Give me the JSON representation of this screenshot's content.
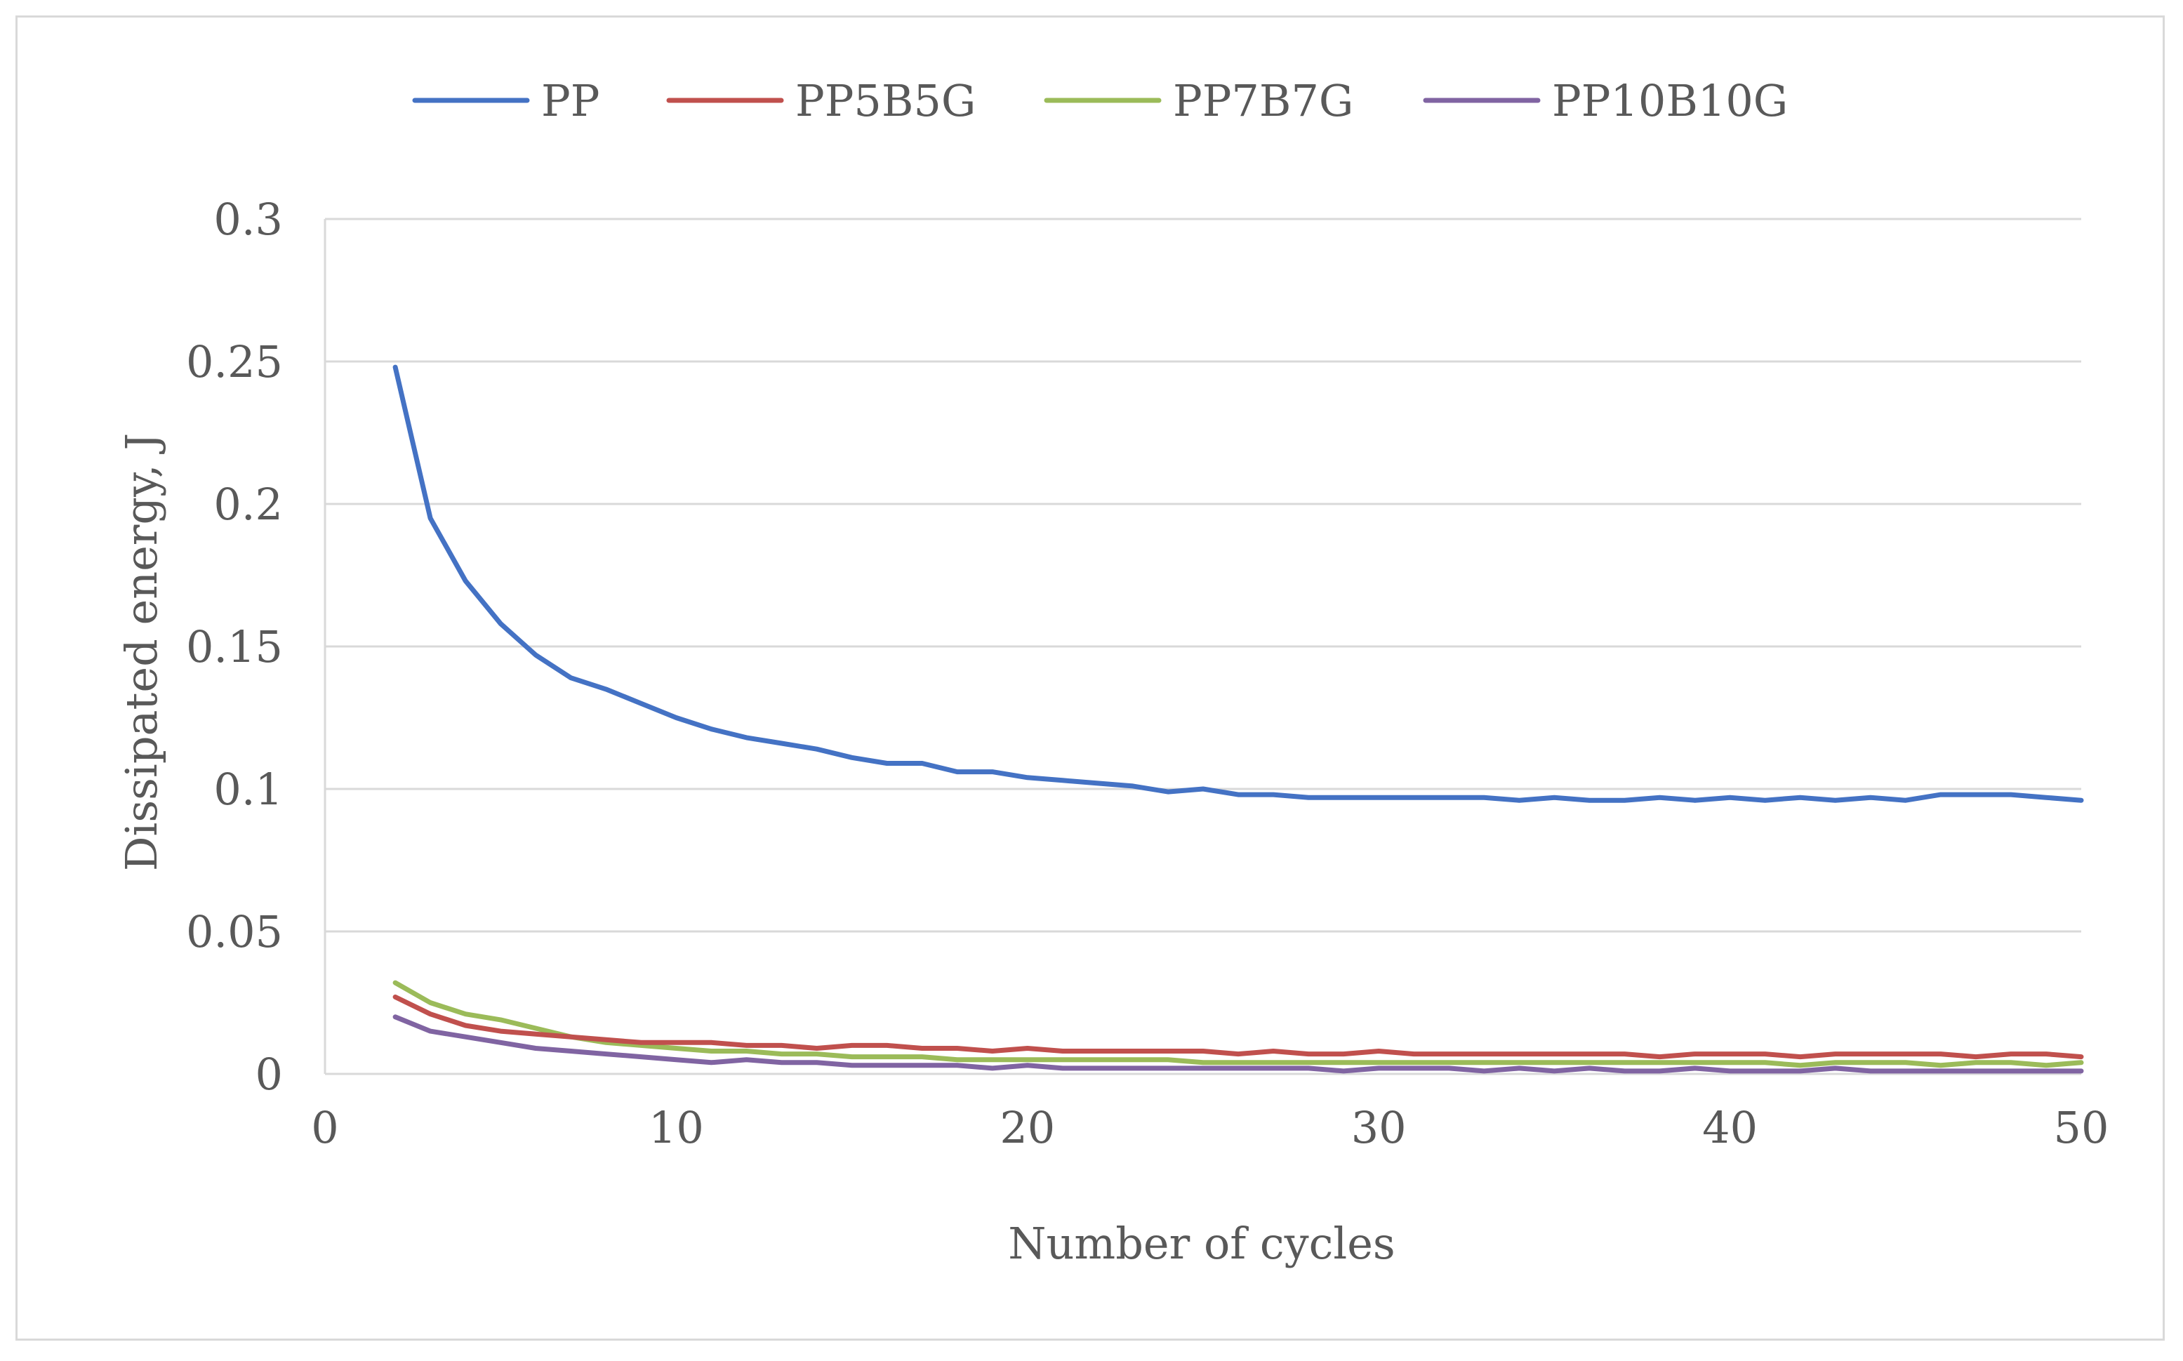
{
  "chart_data": {
    "type": "line",
    "title": "",
    "xlabel": "Number of cycles",
    "ylabel": "Dissipated energy, J",
    "xlim": [
      0,
      50
    ],
    "ylim": [
      0,
      0.3
    ],
    "x_ticks": [
      0,
      10,
      20,
      30,
      40,
      50
    ],
    "x_tick_labels": [
      "0",
      "10",
      "20",
      "30",
      "40",
      "50"
    ],
    "y_ticks": [
      0,
      0.05,
      0.1,
      0.15,
      0.2,
      0.25,
      0.3
    ],
    "y_tick_labels": [
      "0",
      "0.05",
      "0.1",
      "0.15",
      "0.2",
      "0.25",
      "0.3"
    ],
    "grid": true,
    "legend_position": "top",
    "x": [
      2,
      3,
      4,
      5,
      6,
      7,
      8,
      9,
      10,
      11,
      12,
      13,
      14,
      15,
      16,
      17,
      18,
      19,
      20,
      21,
      22,
      23,
      24,
      25,
      26,
      27,
      28,
      29,
      30,
      31,
      32,
      33,
      34,
      35,
      36,
      37,
      38,
      39,
      40,
      41,
      42,
      43,
      44,
      45,
      46,
      47,
      48,
      49,
      50
    ],
    "series": [
      {
        "name": "PP",
        "color": "#4472c4",
        "values": [
          0.248,
          0.195,
          0.173,
          0.158,
          0.147,
          0.139,
          0.135,
          0.13,
          0.125,
          0.121,
          0.118,
          0.116,
          0.114,
          0.111,
          0.109,
          0.109,
          0.106,
          0.106,
          0.104,
          0.103,
          0.102,
          0.101,
          0.099,
          0.1,
          0.098,
          0.098,
          0.097,
          0.097,
          0.097,
          0.097,
          0.097,
          0.097,
          0.096,
          0.097,
          0.096,
          0.096,
          0.097,
          0.096,
          0.097,
          0.096,
          0.097,
          0.096,
          0.097,
          0.096,
          0.098,
          0.098,
          0.098,
          0.097,
          0.096
        ]
      },
      {
        "name": "PP5B5G",
        "color": "#c0504d",
        "values": [
          0.027,
          0.021,
          0.017,
          0.015,
          0.014,
          0.013,
          0.012,
          0.011,
          0.011,
          0.011,
          0.01,
          0.01,
          0.009,
          0.01,
          0.01,
          0.009,
          0.009,
          0.008,
          0.009,
          0.008,
          0.008,
          0.008,
          0.008,
          0.008,
          0.007,
          0.008,
          0.007,
          0.007,
          0.008,
          0.007,
          0.007,
          0.007,
          0.007,
          0.007,
          0.007,
          0.007,
          0.006,
          0.007,
          0.007,
          0.007,
          0.006,
          0.007,
          0.007,
          0.007,
          0.007,
          0.006,
          0.007,
          0.007,
          0.006
        ]
      },
      {
        "name": "PP7B7G",
        "color": "#9bbb59",
        "values": [
          0.032,
          0.025,
          0.021,
          0.019,
          0.016,
          0.013,
          0.011,
          0.01,
          0.009,
          0.008,
          0.008,
          0.007,
          0.007,
          0.006,
          0.006,
          0.006,
          0.005,
          0.005,
          0.005,
          0.005,
          0.005,
          0.005,
          0.005,
          0.004,
          0.004,
          0.004,
          0.004,
          0.004,
          0.004,
          0.004,
          0.004,
          0.004,
          0.004,
          0.004,
          0.004,
          0.004,
          0.004,
          0.004,
          0.004,
          0.004,
          0.003,
          0.004,
          0.004,
          0.004,
          0.003,
          0.004,
          0.004,
          0.003,
          0.004
        ]
      },
      {
        "name": "PP10B10G",
        "color": "#8064a2",
        "values": [
          0.02,
          0.015,
          0.013,
          0.011,
          0.009,
          0.008,
          0.007,
          0.006,
          0.005,
          0.004,
          0.005,
          0.004,
          0.004,
          0.003,
          0.003,
          0.003,
          0.003,
          0.002,
          0.003,
          0.002,
          0.002,
          0.002,
          0.002,
          0.002,
          0.002,
          0.002,
          0.002,
          0.001,
          0.002,
          0.002,
          0.002,
          0.001,
          0.002,
          0.001,
          0.002,
          0.001,
          0.001,
          0.002,
          0.001,
          0.001,
          0.001,
          0.002,
          0.001,
          0.001,
          0.001,
          0.001,
          0.001,
          0.001,
          0.001
        ]
      }
    ]
  }
}
